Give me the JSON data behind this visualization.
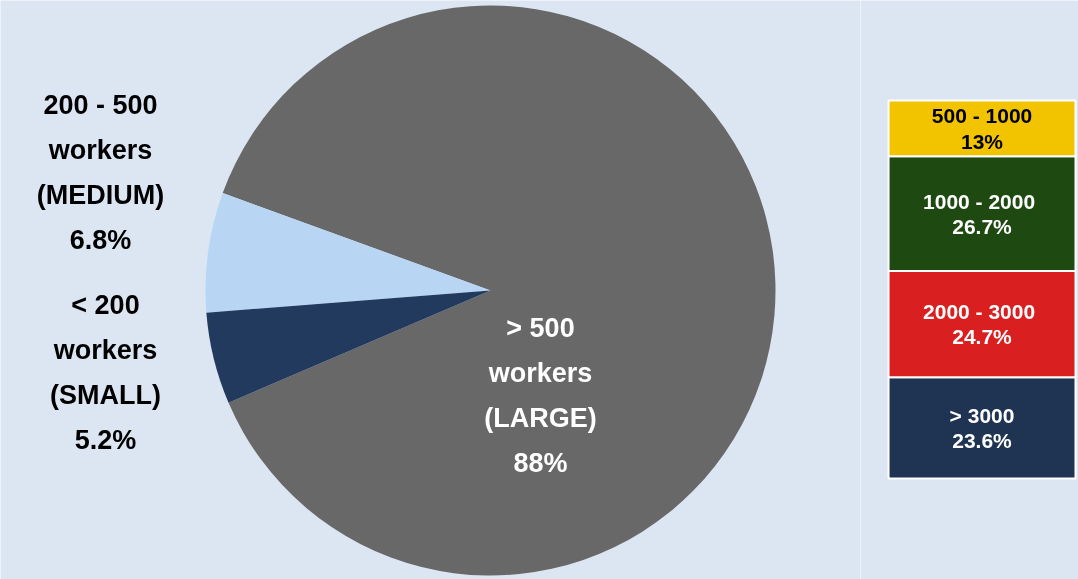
{
  "chart_data": [
    {
      "type": "pie",
      "categories": [
        "> 500\nworkers\n(LARGE)",
        "200 - 500\nworkers\n(MEDIUM)",
        "< 200\nworkers\n(SMALL)"
      ],
      "values": [
        88,
        6.8,
        5.2
      ],
      "value_labels": [
        "88%",
        "6.8%",
        "5.2%"
      ],
      "colors": [
        "#686868",
        "#b8d6f4",
        "#213a5e"
      ]
    },
    {
      "type": "bar",
      "stacked": true,
      "categories": [
        null
      ],
      "series": [
        {
          "name": "> 3000",
          "color": "#1f3352",
          "values": [
            23.6
          ],
          "value_labels": [
            "23.6%"
          ]
        },
        {
          "name": "2000 -  3000",
          "color": "#d91f1f",
          "values": [
            24.7
          ],
          "value_labels": [
            "24.7%"
          ]
        },
        {
          "name": "1000 -  2000",
          "color": "#1e4a12",
          "values": [
            26.7
          ],
          "value_labels": [
            "26.7%"
          ]
        },
        {
          "name": "500 - 1000",
          "color": "#f2c400",
          "values": [
            13
          ],
          "value_labels": [
            "13%"
          ]
        }
      ]
    }
  ]
}
